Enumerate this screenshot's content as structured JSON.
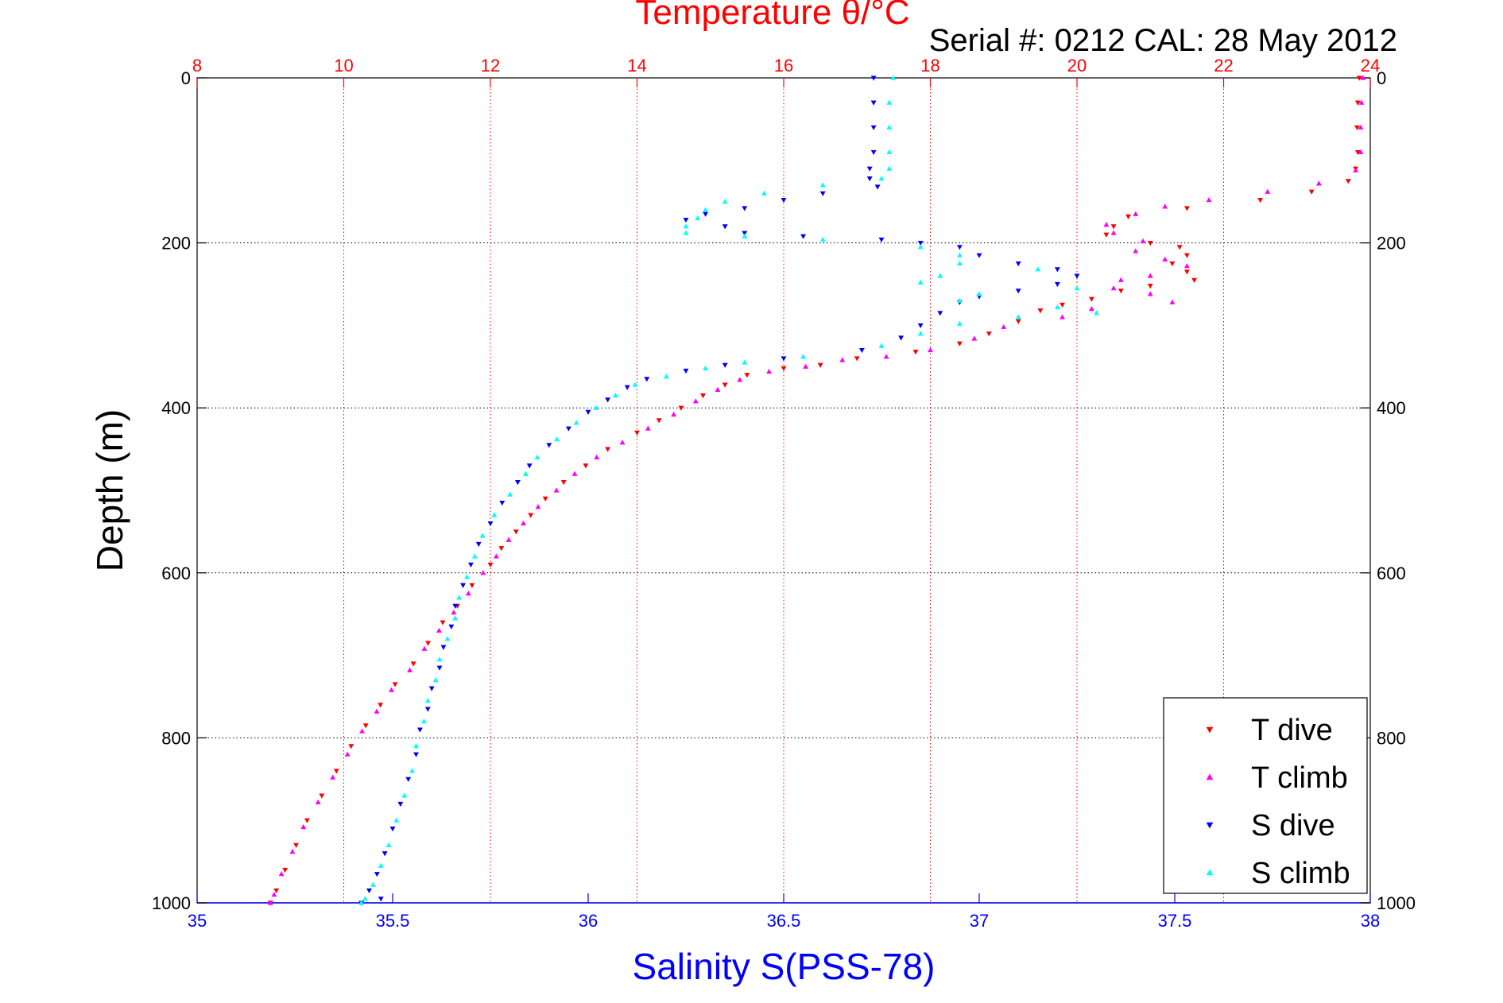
{
  "chart_data": {
    "type": "scatter",
    "title": "Temperature θ/°C",
    "subtitle": "Serial #: 0212  CAL: 28 May 2012",
    "xlabel": "Salinity S(PSS-78)",
    "ylabel": "Depth (m)",
    "x_bottom": {
      "label": "Salinity S(PSS-78)",
      "range": [
        35,
        38
      ],
      "ticks": [
        "35",
        "35.5",
        "36",
        "36.5",
        "37",
        "37.5",
        "38"
      ],
      "tick_values": [
        35,
        35.5,
        36,
        36.5,
        37,
        37.5,
        38
      ],
      "color": "#0000ff"
    },
    "x_top": {
      "label": "Temperature θ/°C",
      "range": [
        8,
        24
      ],
      "ticks": [
        "8",
        "10",
        "12",
        "14",
        "16",
        "18",
        "20",
        "22",
        "24"
      ],
      "tick_values": [
        8,
        10,
        12,
        14,
        16,
        18,
        20,
        22,
        24
      ],
      "color": "#ff0000",
      "grid": true
    },
    "y": {
      "label": "Depth (m)",
      "range": [
        0,
        1000
      ],
      "reversed": true,
      "ticks": [
        "0",
        "200",
        "400",
        "600",
        "800",
        "1000"
      ],
      "tick_values": [
        0,
        200,
        400,
        600,
        800,
        1000
      ],
      "grid": true
    },
    "legend_position": "bottom-right",
    "series": [
      {
        "name": "T dive",
        "axis": "top",
        "marker": "triangle-down",
        "color": "#ff0000",
        "points": [
          [
            23.85,
            0
          ],
          [
            23.83,
            30
          ],
          [
            23.82,
            60
          ],
          [
            23.83,
            90
          ],
          [
            23.8,
            110
          ],
          [
            23.7,
            125
          ],
          [
            23.2,
            138
          ],
          [
            22.5,
            148
          ],
          [
            21.5,
            158
          ],
          [
            20.7,
            168
          ],
          [
            20.5,
            180
          ],
          [
            20.4,
            190
          ],
          [
            21.0,
            200
          ],
          [
            21.4,
            205
          ],
          [
            21.5,
            215
          ],
          [
            21.3,
            225
          ],
          [
            21.5,
            235
          ],
          [
            21.6,
            245
          ],
          [
            21.0,
            252
          ],
          [
            20.6,
            258
          ],
          [
            20.2,
            268
          ],
          [
            19.8,
            275
          ],
          [
            19.5,
            282
          ],
          [
            19.2,
            295
          ],
          [
            18.8,
            310
          ],
          [
            18.4,
            322
          ],
          [
            17.8,
            332
          ],
          [
            17.0,
            340
          ],
          [
            16.5,
            348
          ],
          [
            16.0,
            352
          ],
          [
            15.5,
            360
          ],
          [
            15.2,
            372
          ],
          [
            14.9,
            385
          ],
          [
            14.6,
            400
          ],
          [
            14.3,
            415
          ],
          [
            14.0,
            430
          ],
          [
            13.6,
            450
          ],
          [
            13.3,
            470
          ],
          [
            13.0,
            490
          ],
          [
            12.75,
            510
          ],
          [
            12.55,
            530
          ],
          [
            12.35,
            550
          ],
          [
            12.15,
            570
          ],
          [
            12.0,
            590
          ],
          [
            11.75,
            615
          ],
          [
            11.55,
            640
          ],
          [
            11.35,
            660
          ],
          [
            11.15,
            685
          ],
          [
            10.95,
            710
          ],
          [
            10.7,
            735
          ],
          [
            10.5,
            760
          ],
          [
            10.3,
            785
          ],
          [
            10.1,
            810
          ],
          [
            9.9,
            840
          ],
          [
            9.7,
            870
          ],
          [
            9.5,
            900
          ],
          [
            9.35,
            930
          ],
          [
            9.2,
            960
          ],
          [
            9.08,
            985
          ],
          [
            9.0,
            1000
          ]
        ]
      },
      {
        "name": "T climb",
        "axis": "top",
        "marker": "triangle-up",
        "color": "#ff00ff",
        "points": [
          [
            23.9,
            0
          ],
          [
            23.88,
            30
          ],
          [
            23.87,
            60
          ],
          [
            23.87,
            90
          ],
          [
            23.8,
            112
          ],
          [
            23.3,
            128
          ],
          [
            22.6,
            138
          ],
          [
            21.8,
            148
          ],
          [
            21.2,
            156
          ],
          [
            20.8,
            165
          ],
          [
            20.4,
            178
          ],
          [
            20.5,
            188
          ],
          [
            20.9,
            198
          ],
          [
            20.8,
            210
          ],
          [
            21.2,
            220
          ],
          [
            21.5,
            228
          ],
          [
            21.0,
            240
          ],
          [
            20.6,
            245
          ],
          [
            20.5,
            255
          ],
          [
            21.0,
            262
          ],
          [
            21.3,
            272
          ],
          [
            20.2,
            280
          ],
          [
            19.8,
            290
          ],
          [
            19.0,
            302
          ],
          [
            18.6,
            316
          ],
          [
            18.0,
            330
          ],
          [
            17.4,
            338
          ],
          [
            16.8,
            342
          ],
          [
            16.3,
            350
          ],
          [
            15.8,
            356
          ],
          [
            15.4,
            366
          ],
          [
            15.1,
            378
          ],
          [
            14.8,
            392
          ],
          [
            14.5,
            408
          ],
          [
            14.15,
            425
          ],
          [
            13.8,
            442
          ],
          [
            13.45,
            460
          ],
          [
            13.15,
            480
          ],
          [
            12.9,
            500
          ],
          [
            12.65,
            520
          ],
          [
            12.45,
            540
          ],
          [
            12.25,
            560
          ],
          [
            12.08,
            580
          ],
          [
            11.9,
            600
          ],
          [
            11.7,
            625
          ],
          [
            11.5,
            648
          ],
          [
            11.3,
            670
          ],
          [
            11.1,
            692
          ],
          [
            10.9,
            718
          ],
          [
            10.65,
            742
          ],
          [
            10.45,
            768
          ],
          [
            10.25,
            792
          ],
          [
            10.05,
            820
          ],
          [
            9.85,
            848
          ],
          [
            9.65,
            878
          ],
          [
            9.45,
            908
          ],
          [
            9.3,
            938
          ],
          [
            9.15,
            965
          ],
          [
            9.05,
            990
          ],
          [
            9.0,
            1000
          ]
        ]
      },
      {
        "name": "S dive",
        "axis": "bottom",
        "marker": "triangle-down",
        "color": "#0000ff",
        "points": [
          [
            36.73,
            0
          ],
          [
            36.73,
            30
          ],
          [
            36.73,
            60
          ],
          [
            36.73,
            90
          ],
          [
            36.72,
            110
          ],
          [
            36.72,
            122
          ],
          [
            36.74,
            132
          ],
          [
            36.6,
            140
          ],
          [
            36.5,
            148
          ],
          [
            36.4,
            158
          ],
          [
            36.3,
            165
          ],
          [
            36.25,
            172
          ],
          [
            36.35,
            180
          ],
          [
            36.4,
            188
          ],
          [
            36.55,
            192
          ],
          [
            36.75,
            196
          ],
          [
            36.85,
            200
          ],
          [
            36.95,
            205
          ],
          [
            37.0,
            215
          ],
          [
            37.1,
            225
          ],
          [
            37.2,
            232
          ],
          [
            37.25,
            240
          ],
          [
            37.2,
            250
          ],
          [
            37.1,
            258
          ],
          [
            37.0,
            265
          ],
          [
            36.95,
            272
          ],
          [
            36.9,
            285
          ],
          [
            36.85,
            300
          ],
          [
            36.8,
            315
          ],
          [
            36.7,
            330
          ],
          [
            36.5,
            340
          ],
          [
            36.35,
            348
          ],
          [
            36.25,
            355
          ],
          [
            36.15,
            365
          ],
          [
            36.1,
            375
          ],
          [
            36.05,
            390
          ],
          [
            36.0,
            405
          ],
          [
            35.95,
            425
          ],
          [
            35.9,
            445
          ],
          [
            35.85,
            470
          ],
          [
            35.82,
            490
          ],
          [
            35.78,
            515
          ],
          [
            35.75,
            540
          ],
          [
            35.72,
            565
          ],
          [
            35.7,
            590
          ],
          [
            35.68,
            615
          ],
          [
            35.66,
            640
          ],
          [
            35.65,
            665
          ],
          [
            35.63,
            690
          ],
          [
            35.62,
            715
          ],
          [
            35.6,
            740
          ],
          [
            35.59,
            765
          ],
          [
            35.57,
            790
          ],
          [
            35.56,
            820
          ],
          [
            35.54,
            850
          ],
          [
            35.52,
            880
          ],
          [
            35.5,
            910
          ],
          [
            35.48,
            940
          ],
          [
            35.46,
            965
          ],
          [
            35.44,
            985
          ],
          [
            35.47,
            995
          ],
          [
            35.42,
            1000
          ]
        ]
      },
      {
        "name": "S climb",
        "axis": "bottom",
        "marker": "triangle-up",
        "color": "#00ffff",
        "points": [
          [
            36.78,
            0
          ],
          [
            36.77,
            30
          ],
          [
            36.77,
            60
          ],
          [
            36.77,
            90
          ],
          [
            36.77,
            110
          ],
          [
            36.75,
            122
          ],
          [
            36.6,
            130
          ],
          [
            36.45,
            140
          ],
          [
            36.35,
            150
          ],
          [
            36.3,
            160
          ],
          [
            36.28,
            170
          ],
          [
            36.25,
            180
          ],
          [
            36.25,
            188
          ],
          [
            36.4,
            192
          ],
          [
            36.6,
            196
          ],
          [
            36.85,
            205
          ],
          [
            36.95,
            215
          ],
          [
            36.95,
            225
          ],
          [
            37.15,
            232
          ],
          [
            36.9,
            240
          ],
          [
            36.85,
            248
          ],
          [
            37.25,
            255
          ],
          [
            37.0,
            262
          ],
          [
            36.95,
            270
          ],
          [
            37.2,
            278
          ],
          [
            37.3,
            285
          ],
          [
            37.1,
            290
          ],
          [
            36.95,
            298
          ],
          [
            36.85,
            310
          ],
          [
            36.75,
            325
          ],
          [
            36.55,
            338
          ],
          [
            36.4,
            345
          ],
          [
            36.3,
            352
          ],
          [
            36.2,
            362
          ],
          [
            36.12,
            372
          ],
          [
            36.07,
            385
          ],
          [
            36.02,
            400
          ],
          [
            35.97,
            418
          ],
          [
            35.92,
            438
          ],
          [
            35.87,
            460
          ],
          [
            35.84,
            480
          ],
          [
            35.8,
            505
          ],
          [
            35.76,
            530
          ],
          [
            35.73,
            555
          ],
          [
            35.71,
            580
          ],
          [
            35.69,
            605
          ],
          [
            35.67,
            630
          ],
          [
            35.66,
            655
          ],
          [
            35.64,
            680
          ],
          [
            35.62,
            705
          ],
          [
            35.61,
            730
          ],
          [
            35.59,
            755
          ],
          [
            35.58,
            780
          ],
          [
            35.56,
            810
          ],
          [
            35.55,
            840
          ],
          [
            35.53,
            870
          ],
          [
            35.51,
            900
          ],
          [
            35.49,
            930
          ],
          [
            35.47,
            955
          ],
          [
            35.45,
            978
          ],
          [
            35.43,
            995
          ],
          [
            35.42,
            1000
          ]
        ]
      }
    ]
  }
}
